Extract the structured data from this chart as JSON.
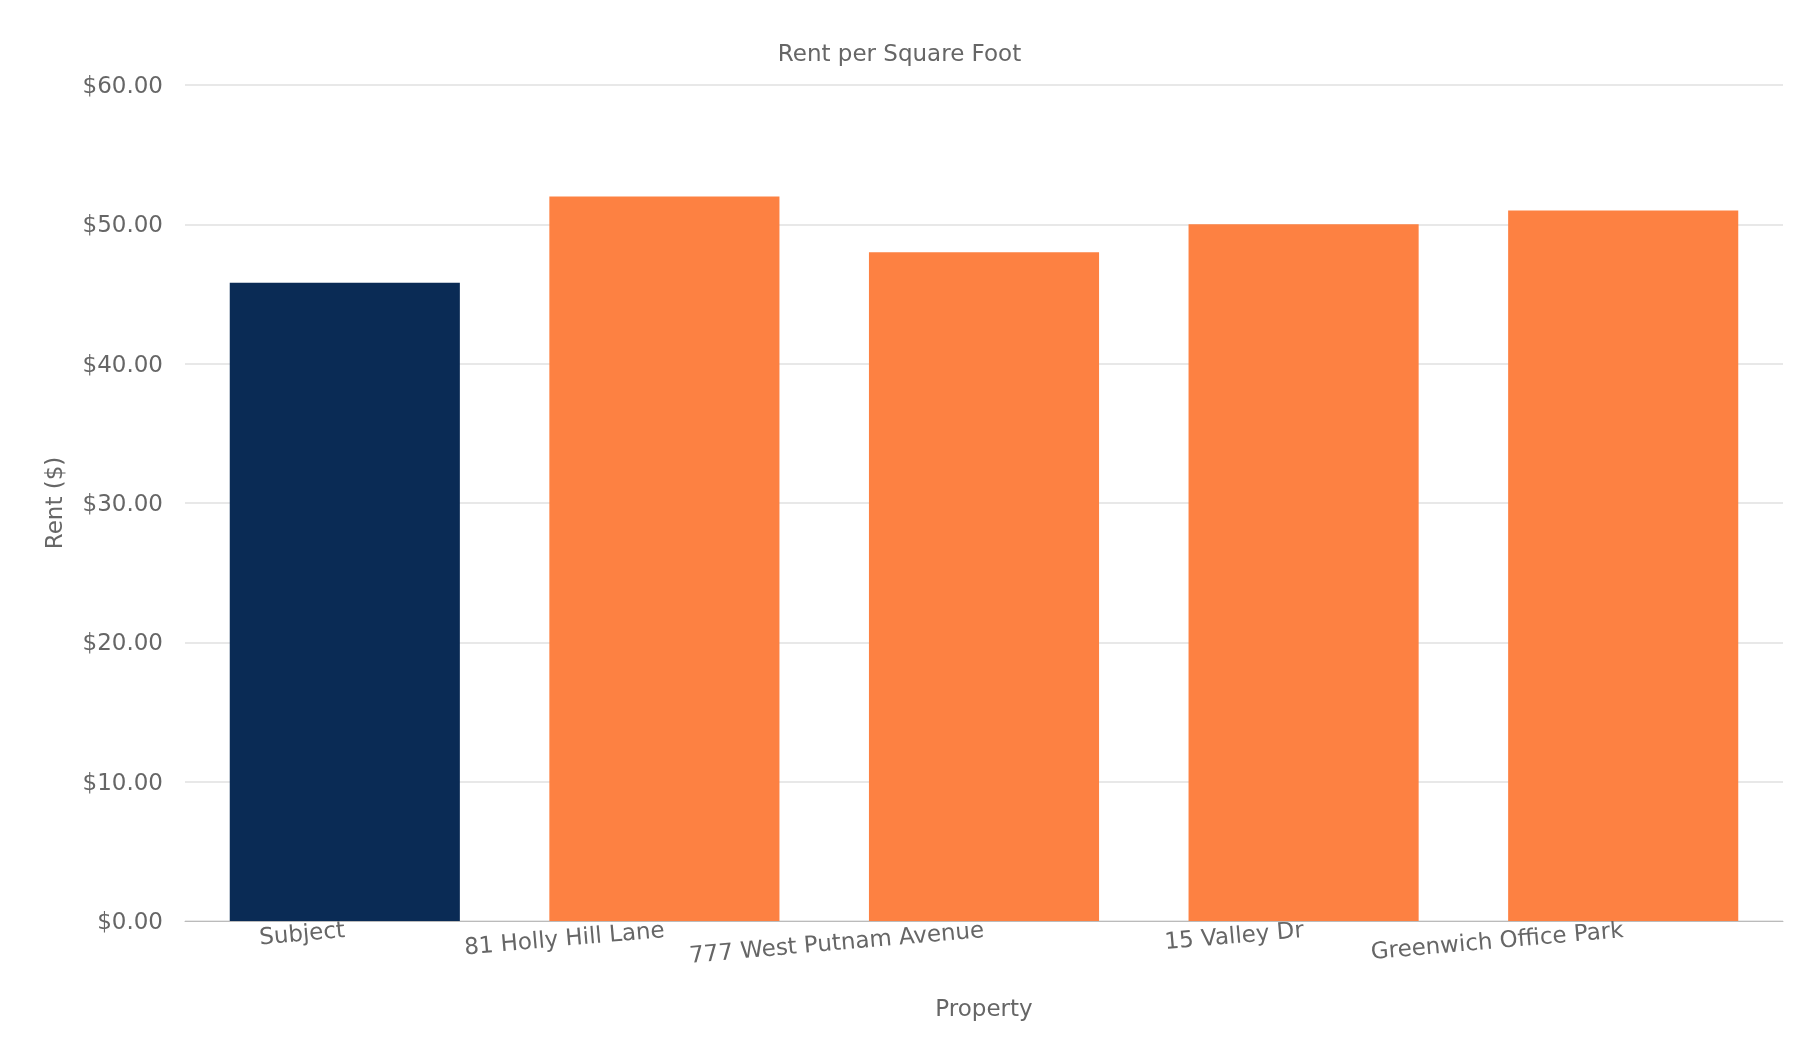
{
  "chart_data": {
    "type": "bar",
    "title": "Rent per Square Foot",
    "xlabel": "Property",
    "ylabel": "Rent ($)",
    "categories": [
      "Subject",
      "81 Holly Hill Lane",
      "777 West Putnam Avenue",
      "15 Valley Dr",
      "Greenwich Office Park"
    ],
    "values": [
      45.8,
      52,
      48,
      50,
      51
    ],
    "colors": [
      "#0a2b55",
      "#fd8142",
      "#fd8142",
      "#fd8142",
      "#fd8142"
    ],
    "ylim": [
      0,
      60
    ],
    "yticks": [
      {
        "value": 0,
        "label": "$0.00"
      },
      {
        "value": 10,
        "label": "$10.00"
      },
      {
        "value": 20,
        "label": "$20.00"
      },
      {
        "value": 30,
        "label": "$30.00"
      },
      {
        "value": 40,
        "label": "$40.00"
      },
      {
        "value": 50,
        "label": "$50.00"
      },
      {
        "value": 60,
        "label": "$60.00"
      }
    ],
    "grid": "y"
  }
}
